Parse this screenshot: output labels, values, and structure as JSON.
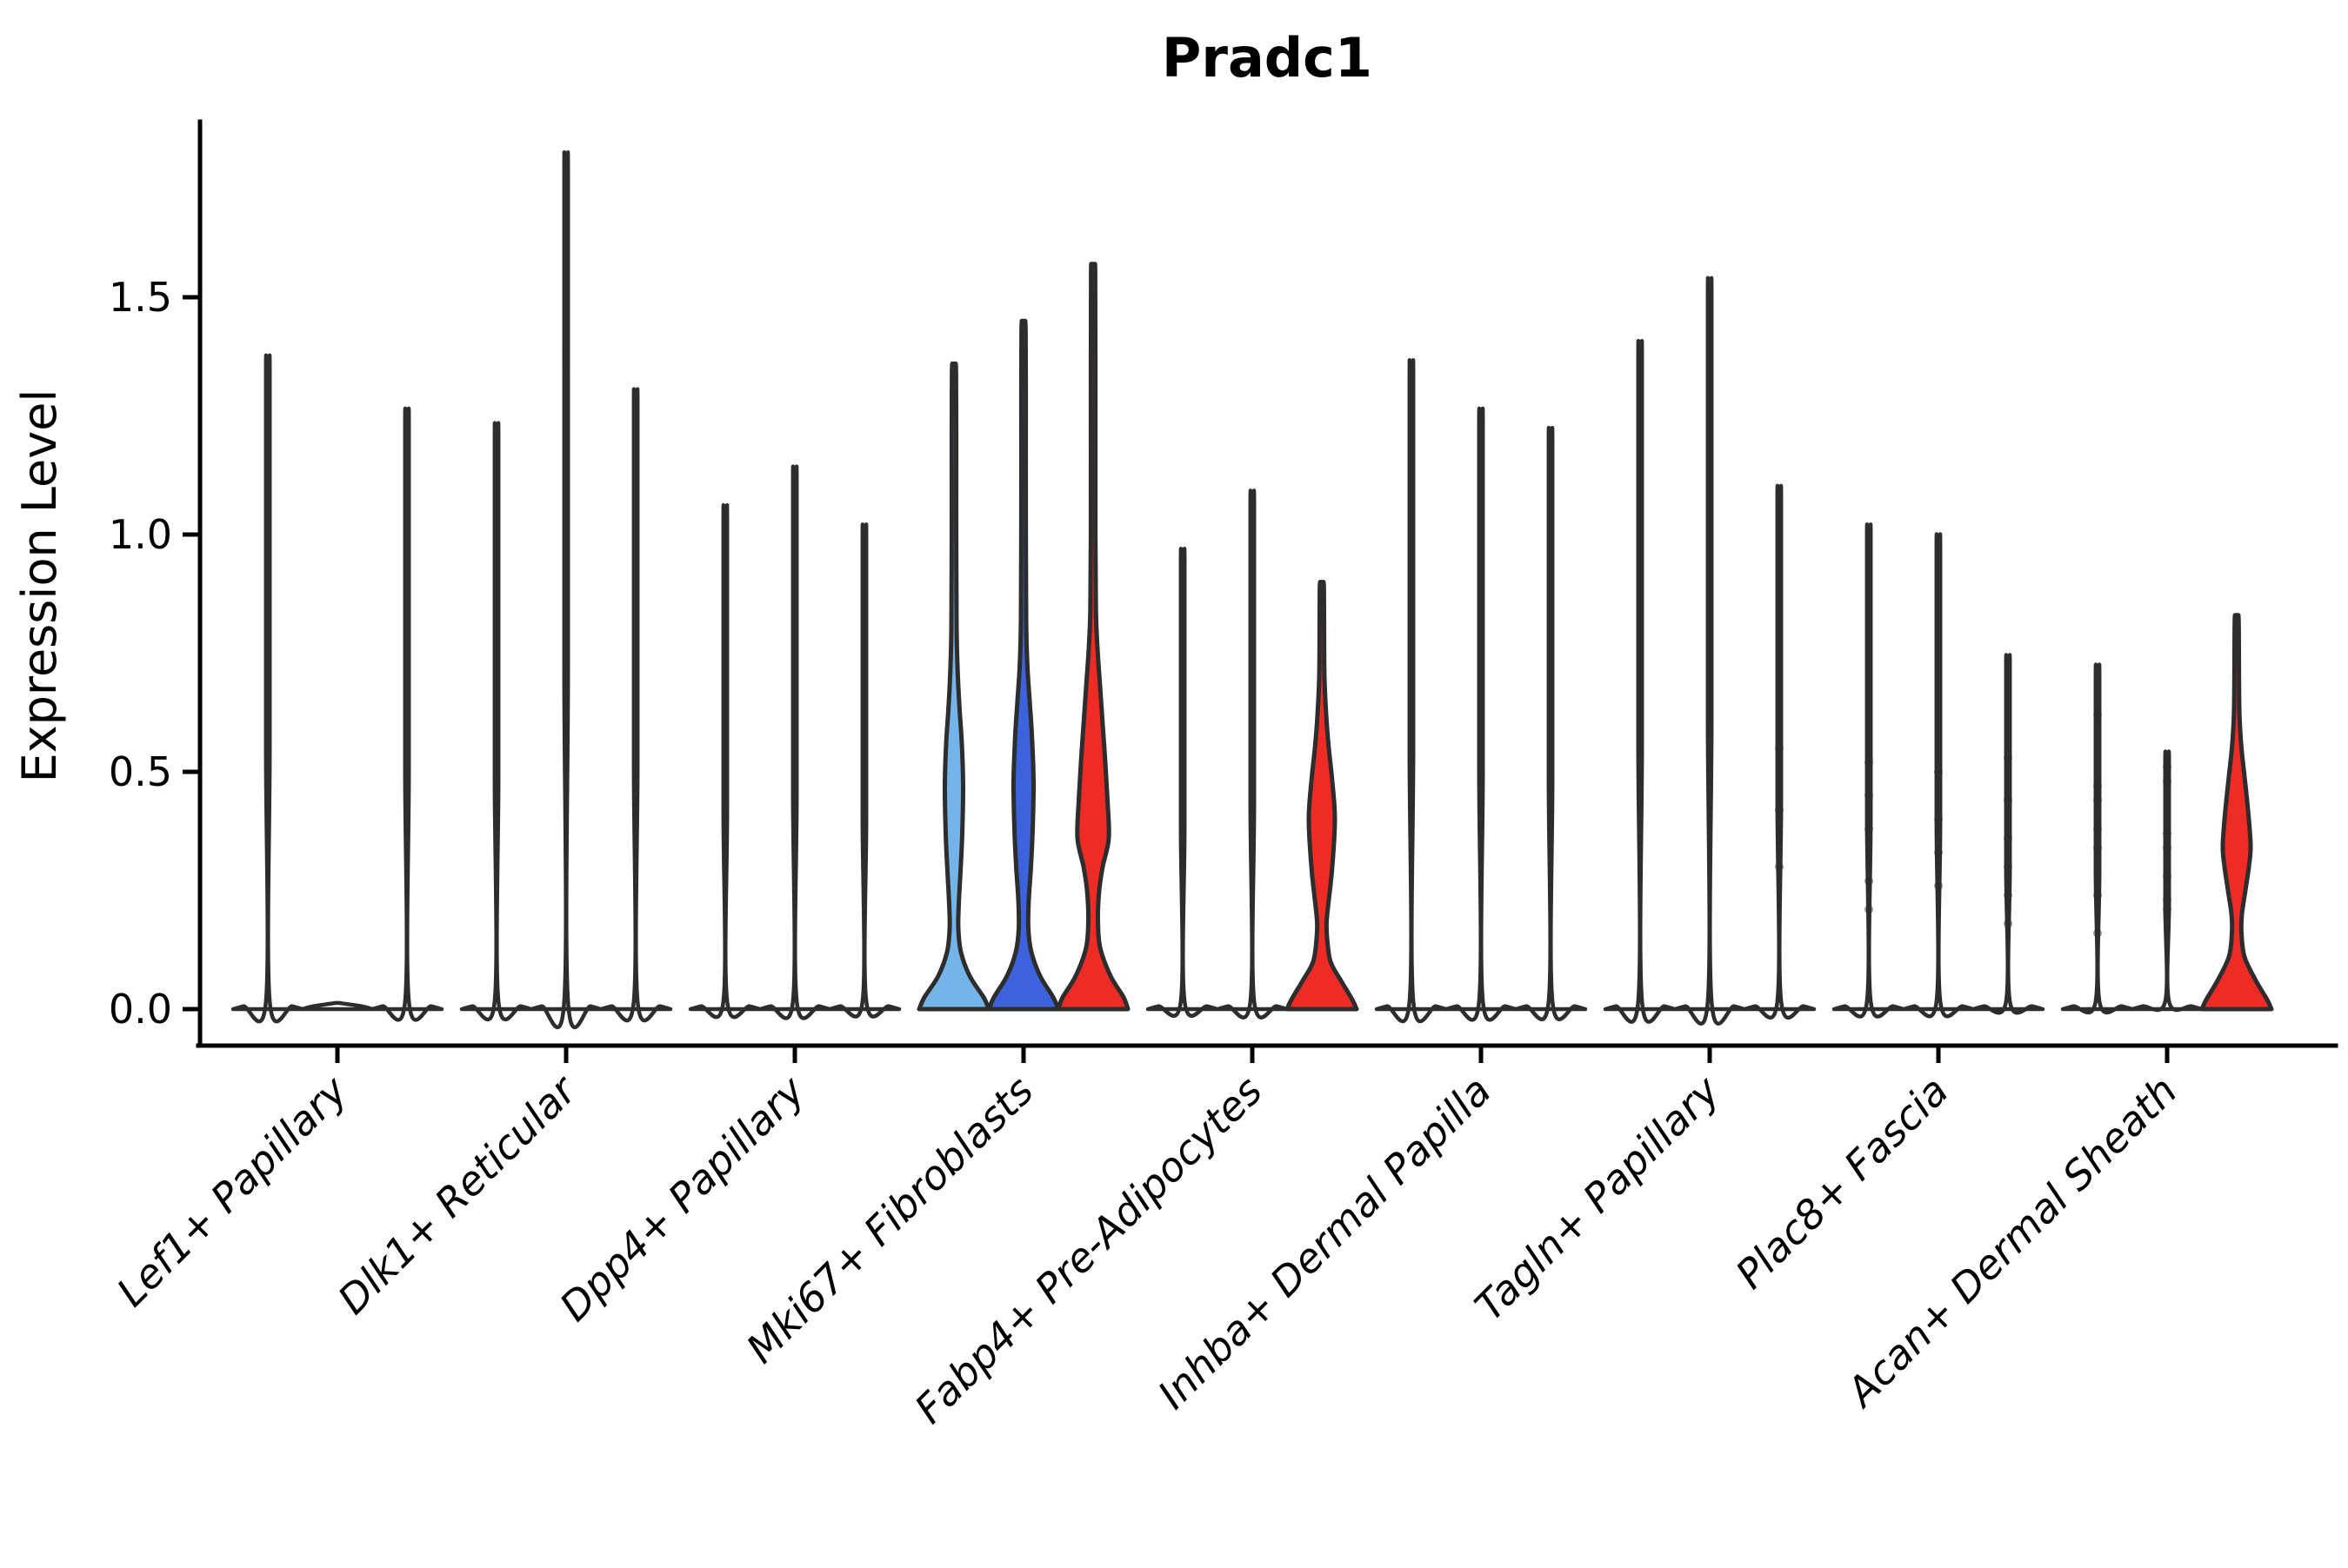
{
  "title": "Pradc1",
  "ylabel": "Expression Level",
  "colors": {
    "outline": "#2d2d2d",
    "axis": "#000000",
    "white": "#ffffff",
    "light_blue": "#74b4e8",
    "royal_blue": "#3c63dc",
    "red": "#ee2b24"
  },
  "chart_data": {
    "type": "violin",
    "title": "Pradc1",
    "xlabel": "",
    "ylabel": "Expression Level",
    "ylim": [
      0,
      1.87
    ],
    "yticks": [
      0.0,
      0.5,
      1.0,
      1.5
    ],
    "ytick_labels": [
      "0.0",
      "0.5",
      "1.0",
      "1.5"
    ],
    "grid": false,
    "legend": false,
    "violins_per_category": 3,
    "categories": [
      "Lef1+ Papillary",
      "Dlk1+ Reticular",
      "Dpp4+ Papillary",
      "Mki67+ Fibroblasts",
      "Fabp4+ Pre-Adipocytes",
      "Inhba+ Dermal Papilla",
      "Tagln+ Papillary",
      "Plac8+ Fascia",
      "Acan+ Dermal Sheath"
    ],
    "groups": [
      {
        "category": "Lef1+ Papillary",
        "violins": [
          {
            "max": 1.36,
            "fill": "white",
            "shape": "spike"
          },
          {
            "max": 0.0,
            "fill": "white",
            "shape": "spike"
          },
          {
            "max": 1.25,
            "fill": "white",
            "shape": "spike"
          }
        ]
      },
      {
        "category": "Dlk1+ Reticular",
        "violins": [
          {
            "max": 1.22,
            "fill": "white",
            "shape": "spike"
          },
          {
            "max": 1.78,
            "fill": "white",
            "shape": "spike"
          },
          {
            "max": 1.29,
            "fill": "white",
            "shape": "spike"
          }
        ]
      },
      {
        "category": "Dpp4+ Papillary",
        "violins": [
          {
            "max": 1.05,
            "fill": "white",
            "shape": "spike"
          },
          {
            "max": 1.13,
            "fill": "white",
            "shape": "spike"
          },
          {
            "max": 1.01,
            "fill": "white",
            "shape": "spike"
          }
        ]
      },
      {
        "category": "Mki67+ Fibroblasts",
        "violins": [
          {
            "max": 1.36,
            "fill": "light_blue",
            "shape": "body",
            "profile": [
              [
                0,
                40
              ],
              [
                0.025,
                34
              ],
              [
                0.07,
                18
              ],
              [
                0.12,
                8
              ],
              [
                0.17,
                5
              ],
              [
                0.22,
                5.5
              ],
              [
                0.29,
                7.5
              ],
              [
                0.37,
                9.5
              ],
              [
                0.47,
                10.5
              ],
              [
                0.56,
                9
              ],
              [
                0.63,
                6.5
              ],
              [
                0.7,
                4.5
              ],
              [
                0.8,
                3
              ],
              [
                1.0,
                2.6
              ],
              [
                1.2,
                2.6
              ],
              [
                1.33,
                2.4
              ],
              [
                1.36,
                2.0
              ]
            ]
          },
          {
            "max": 1.45,
            "fill": "royal_blue",
            "shape": "body",
            "profile": [
              [
                0,
                40
              ],
              [
                0.025,
                34
              ],
              [
                0.07,
                19
              ],
              [
                0.12,
                9
              ],
              [
                0.17,
                5.5
              ],
              [
                0.23,
                6
              ],
              [
                0.3,
                8.5
              ],
              [
                0.38,
                10.5
              ],
              [
                0.48,
                11.5
              ],
              [
                0.58,
                9.5
              ],
              [
                0.65,
                7
              ],
              [
                0.72,
                4.5
              ],
              [
                0.82,
                3
              ],
              [
                1.05,
                2.6
              ],
              [
                1.3,
                2.6
              ],
              [
                1.42,
                2.4
              ],
              [
                1.45,
                2.0
              ]
            ]
          },
          {
            "max": 1.57,
            "fill": "red",
            "shape": "body",
            "profile": [
              [
                0,
                40
              ],
              [
                0.025,
                35
              ],
              [
                0.07,
                20
              ],
              [
                0.13,
                8
              ],
              [
                0.19,
                5.5
              ],
              [
                0.25,
                7
              ],
              [
                0.3,
                11
              ],
              [
                0.36,
                18
              ],
              [
                0.44,
                16.5
              ],
              [
                0.52,
                14
              ],
              [
                0.6,
                11
              ],
              [
                0.68,
                8
              ],
              [
                0.76,
                5
              ],
              [
                0.84,
                3.2
              ],
              [
                1.0,
                2.6
              ],
              [
                1.3,
                2.6
              ],
              [
                1.54,
                2.4
              ],
              [
                1.57,
                2.0
              ]
            ]
          }
        ]
      },
      {
        "category": "Fabp4+ Pre-Adipocytes",
        "violins": [
          {
            "max": 0.96,
            "fill": "white",
            "shape": "spike"
          },
          {
            "max": 1.08,
            "fill": "white",
            "shape": "spike"
          },
          {
            "max": 0.9,
            "fill": "red",
            "shape": "body",
            "profile": [
              [
                0,
                40
              ],
              [
                0.02,
                35
              ],
              [
                0.06,
                22
              ],
              [
                0.1,
                10
              ],
              [
                0.15,
                6
              ],
              [
                0.185,
                5.5
              ],
              [
                0.23,
                8
              ],
              [
                0.3,
                12
              ],
              [
                0.4,
                15
              ],
              [
                0.48,
                12
              ],
              [
                0.55,
                8
              ],
              [
                0.62,
                5
              ],
              [
                0.7,
                3
              ],
              [
                0.8,
                2.6
              ],
              [
                0.88,
                2.4
              ],
              [
                0.9,
                2.0
              ]
            ]
          }
        ]
      },
      {
        "category": "Inhba+ Dermal Papilla",
        "violins": [
          {
            "max": 1.35,
            "fill": "white",
            "shape": "spike"
          },
          {
            "max": 1.25,
            "fill": "white",
            "shape": "spike"
          },
          {
            "max": 1.21,
            "fill": "white",
            "shape": "spike"
          }
        ]
      },
      {
        "category": "Tagln+ Papillary",
        "violins": [
          {
            "max": 1.39,
            "fill": "white",
            "shape": "spike"
          },
          {
            "max": 1.52,
            "fill": "white",
            "shape": "spike"
          },
          {
            "max": 1.09,
            "fill": "white",
            "shape": "spike",
            "dots": [
              0.55,
              0.42,
              0.3
            ]
          }
        ]
      },
      {
        "category": "Plac8+ Fascia",
        "violins": [
          {
            "max": 1.01,
            "fill": "white",
            "shape": "spike",
            "dots": [
              0.52,
              0.45,
              0.38,
              0.27,
              0.21
            ]
          },
          {
            "max": 0.99,
            "fill": "white",
            "shape": "spike",
            "dots": [
              0.5,
              0.4,
              0.33,
              0.26
            ]
          },
          {
            "max": 0.74,
            "fill": "white",
            "shape": "spike",
            "dots": [
              0.53,
              0.44,
              0.36,
              0.3,
              0.24,
              0.18
            ]
          }
        ]
      },
      {
        "category": "Acan+ Dermal Sheath",
        "violins": [
          {
            "max": 0.72,
            "fill": "white",
            "shape": "spike",
            "dots": [
              0.62,
              0.47,
              0.44,
              0.38,
              0.34,
              0.24,
              0.16
            ]
          },
          {
            "max": 0.54,
            "fill": "white",
            "shape": "spike",
            "dots": [
              0.51,
              0.48,
              0.37,
              0.34,
              0.28,
              0.23,
              0.21
            ]
          },
          {
            "max": 0.83,
            "fill": "red",
            "shape": "body",
            "profile": [
              [
                0,
                40
              ],
              [
                0.02,
                35
              ],
              [
                0.06,
                22
              ],
              [
                0.11,
                9
              ],
              [
                0.16,
                5.5
              ],
              [
                0.2,
                6
              ],
              [
                0.25,
                10
              ],
              [
                0.3,
                14
              ],
              [
                0.345,
                16
              ],
              [
                0.42,
                13
              ],
              [
                0.49,
                9
              ],
              [
                0.55,
                5.5
              ],
              [
                0.62,
                3.2
              ],
              [
                0.72,
                2.6
              ],
              [
                0.8,
                2.4
              ],
              [
                0.83,
                2.0
              ]
            ]
          }
        ]
      }
    ]
  }
}
